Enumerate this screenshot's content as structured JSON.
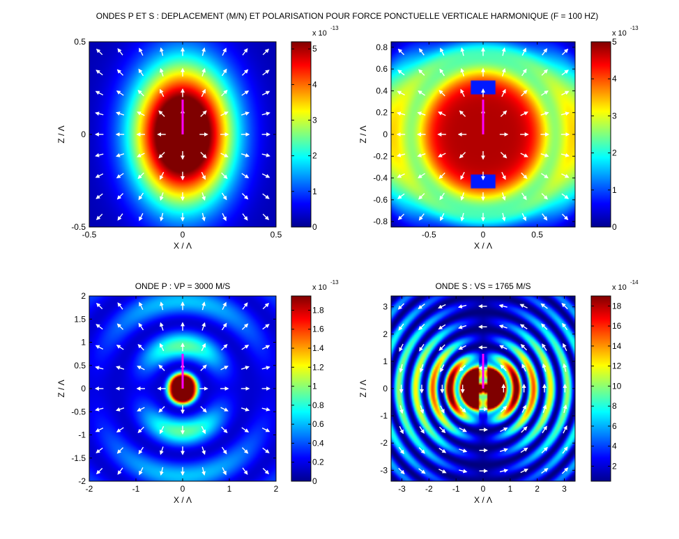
{
  "suptitle": "ONDES P ET S : DEPLACEMENT (M/N) ET POLARISATION POUR FORCE PONCTUELLE VERTICALE HARMONIQUE (F = 100 HZ)",
  "chart_data": [
    {
      "type": "heatmap",
      "title": "",
      "xlabel": "X / Λ",
      "ylabel": "Z / Λ",
      "xlim": [
        -0.5,
        0.5
      ],
      "ylim": [
        -0.5,
        0.5
      ],
      "xticks": [
        -0.5,
        0,
        0.5
      ],
      "yticks": [
        -0.5,
        0,
        0.5
      ],
      "colorbar": {
        "min": 0,
        "max": 5.2,
        "ticks": [
          0,
          1,
          2,
          3,
          4,
          5
        ],
        "exponent": "-13"
      },
      "source": {
        "x": 0,
        "z": 0
      },
      "arrows": "radial",
      "pattern": "near field"
    },
    {
      "type": "heatmap",
      "title": "",
      "xlabel": "X / Λ",
      "ylabel": "Z / Λ",
      "xlim": [
        -0.85,
        0.85
      ],
      "ylim": [
        -0.85,
        0.85
      ],
      "xticks": [
        -0.5,
        0,
        0.5
      ],
      "yticks": [
        -0.8,
        -0.6,
        -0.4,
        -0.2,
        0,
        0.2,
        0.4,
        0.6,
        0.8
      ],
      "colorbar": {
        "min": 0,
        "max": 5,
        "ticks": [
          0,
          1,
          2,
          3,
          4,
          5
        ],
        "exponent": "-13"
      },
      "source": {
        "x": 0,
        "z": 0
      },
      "arrows": "radial",
      "pattern": "total field"
    },
    {
      "type": "heatmap",
      "title": "ONDE P : VP = 3000 M/S",
      "xlabel": "X / Λ",
      "ylabel": "Z / Λ",
      "xlim": [
        -2,
        2
      ],
      "ylim": [
        -2,
        2
      ],
      "xticks": [
        -2,
        -1,
        0,
        1,
        2
      ],
      "yticks": [
        -2,
        -1.5,
        -1,
        -0.5,
        0,
        0.5,
        1,
        1.5,
        2
      ],
      "colorbar": {
        "min": 0,
        "max": 1.95,
        "ticks": [
          0,
          0.2,
          0.4,
          0.6,
          0.8,
          1,
          1.2,
          1.4,
          1.6,
          1.8
        ],
        "exponent": "-13"
      },
      "source": {
        "x": 0,
        "z": 0
      },
      "arrows": "radial",
      "pattern": "P wave"
    },
    {
      "type": "heatmap",
      "title": "ONDE S : VS = 1765 M/S",
      "xlabel": "X / Λ",
      "ylabel": "Z / Λ",
      "xlim": [
        -3.4,
        3.4
      ],
      "ylim": [
        -3.4,
        3.4
      ],
      "xticks": [
        -3,
        -2,
        -1,
        0,
        1,
        2,
        3
      ],
      "yticks": [
        -3,
        -2,
        -1,
        0,
        1,
        2,
        3
      ],
      "colorbar": {
        "min": 0.5,
        "max": 19,
        "ticks": [
          2,
          4,
          6,
          8,
          10,
          12,
          14,
          16,
          18
        ],
        "exponent": "-14"
      },
      "source": {
        "x": 0,
        "z": 0
      },
      "arrows": "tangential",
      "pattern": "S wave"
    }
  ]
}
